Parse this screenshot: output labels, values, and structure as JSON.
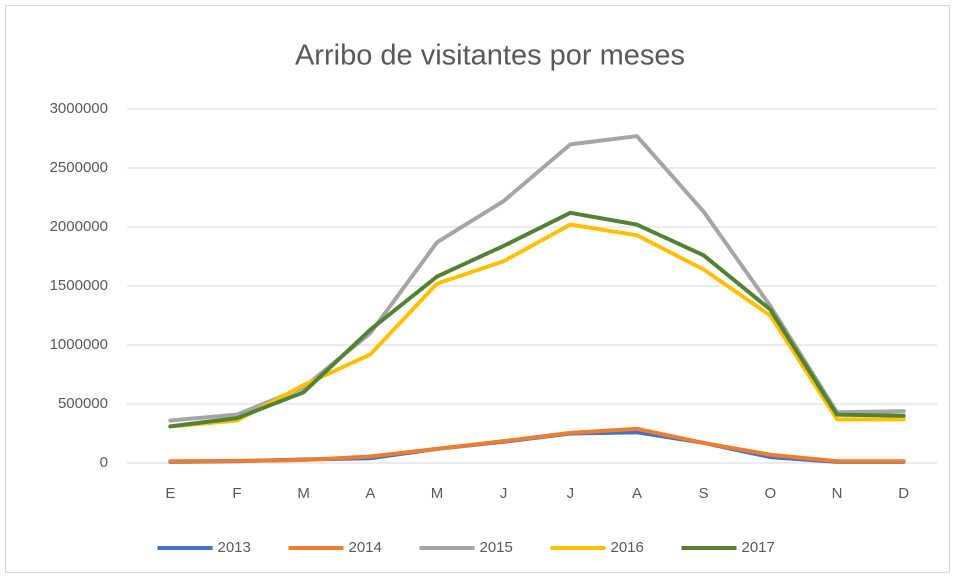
{
  "chart_data": {
    "type": "line",
    "title": "Arribo de visitantes por meses",
    "categories": [
      "E",
      "F",
      "M",
      "A",
      "M",
      "J",
      "J",
      "A",
      "S",
      "O",
      "N",
      "D"
    ],
    "series": [
      {
        "name": "2013",
        "color": "#4472c4",
        "values": [
          10000,
          15000,
          30000,
          40000,
          120000,
          180000,
          250000,
          260000,
          170000,
          50000,
          10000,
          10000
        ]
      },
      {
        "name": "2014",
        "color": "#ed7d31",
        "values": [
          15000,
          18000,
          25000,
          55000,
          120000,
          185000,
          255000,
          290000,
          170000,
          70000,
          15000,
          15000
        ]
      },
      {
        "name": "2015",
        "color": "#a5a5a5",
        "values": [
          360000,
          410000,
          640000,
          1100000,
          1870000,
          2220000,
          2700000,
          2770000,
          2130000,
          1330000,
          430000,
          440000
        ]
      },
      {
        "name": "2016",
        "color": "#ffc000",
        "values": [
          310000,
          360000,
          660000,
          920000,
          1520000,
          1710000,
          2020000,
          1930000,
          1640000,
          1250000,
          370000,
          370000
        ]
      },
      {
        "name": "2017",
        "color": "#548235",
        "values": [
          310000,
          380000,
          600000,
          1130000,
          1580000,
          1840000,
          2120000,
          2020000,
          1760000,
          1300000,
          410000,
          400000
        ]
      }
    ],
    "ylim": [
      0,
      3000000
    ],
    "yticks": [
      0,
      500000,
      1000000,
      1500000,
      2000000,
      2500000,
      3000000
    ],
    "grid": true,
    "legend": "bottom"
  }
}
